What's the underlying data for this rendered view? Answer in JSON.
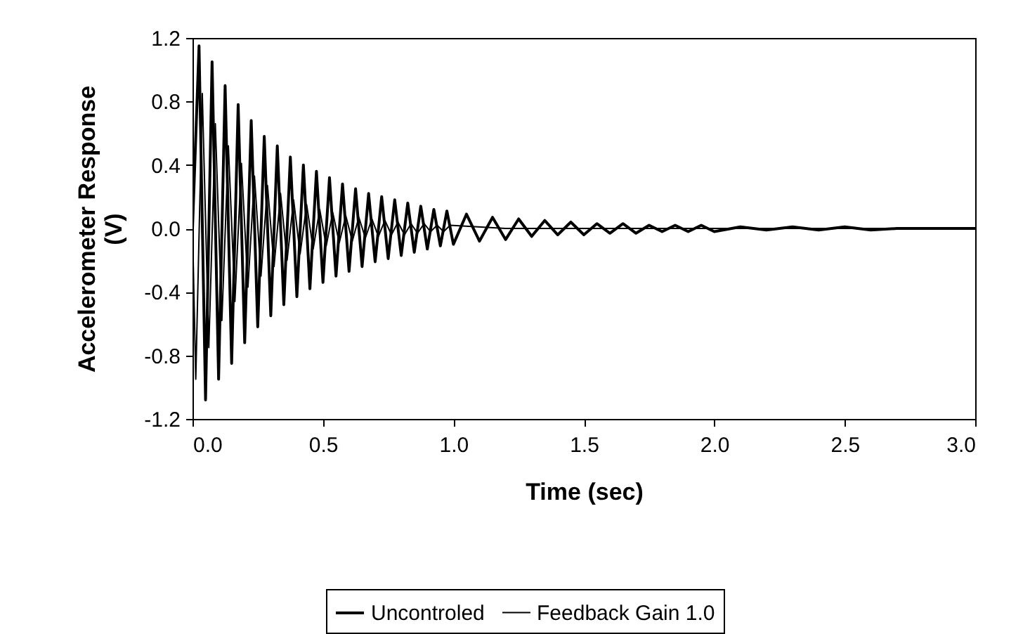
{
  "chart_data": {
    "type": "line",
    "xlabel": "Time (sec)",
    "ylabel": "Accelerometer Response (V)",
    "xlim": [
      0,
      3
    ],
    "xticks": [
      {
        "value": 0,
        "label": "0.0"
      },
      {
        "value": 0.5,
        "label": "0.5"
      },
      {
        "value": 1,
        "label": "1.0"
      },
      {
        "value": 1.5,
        "label": "1.5"
      },
      {
        "value": 2,
        "label": "2.0"
      },
      {
        "value": 2.5,
        "label": "2.5"
      },
      {
        "value": 3,
        "label": "3.0"
      }
    ],
    "ylim": [
      -1.2,
      1.2
    ],
    "yticks": [
      {
        "value": -1.2,
        "label": "-1.2"
      },
      {
        "value": -0.8,
        "label": "-0.8"
      },
      {
        "value": -0.4,
        "label": "-0.4"
      },
      {
        "value": 0,
        "label": "0.0"
      },
      {
        "value": 0.4,
        "label": "0.4"
      },
      {
        "value": 0.8,
        "label": "0.8"
      },
      {
        "value": 1.2,
        "label": "1.2"
      }
    ],
    "grid": false,
    "legend": "bottom",
    "marker": "none",
    "line_style": "solid",
    "series": [
      {
        "name": "Uncontroled",
        "color": "#000000",
        "x": [
          0,
          0.025,
          0.05,
          0.075,
          0.1,
          0.125,
          0.15,
          0.175,
          0.2,
          0.225,
          0.25,
          0.275,
          0.3,
          0.325,
          0.35,
          0.375,
          0.4,
          0.425,
          0.45,
          0.475,
          0.5,
          0.525,
          0.55,
          0.575,
          0.6,
          0.625,
          0.65,
          0.675,
          0.7,
          0.725,
          0.75,
          0.775,
          0.8,
          0.825,
          0.85,
          0.875,
          0.9,
          0.925,
          0.95,
          0.975,
          1.0,
          1.05,
          1.1,
          1.15,
          1.2,
          1.25,
          1.3,
          1.35,
          1.4,
          1.45,
          1.5,
          1.55,
          1.6,
          1.65,
          1.7,
          1.75,
          1.8,
          1.85,
          1.9,
          1.95,
          2.0,
          2.1,
          2.2,
          2.3,
          2.4,
          2.5,
          2.6,
          2.7,
          3.0
        ],
        "values": [
          0,
          1.15,
          -1.08,
          1.05,
          -0.95,
          0.9,
          -0.85,
          0.78,
          -0.72,
          0.68,
          -0.62,
          0.58,
          -0.55,
          0.52,
          -0.48,
          0.45,
          -0.43,
          0.4,
          -0.38,
          0.36,
          -0.34,
          0.32,
          -0.3,
          0.28,
          -0.27,
          0.25,
          -0.24,
          0.22,
          -0.21,
          0.2,
          -0.19,
          0.18,
          -0.17,
          0.16,
          -0.15,
          0.14,
          -0.13,
          0.12,
          -0.11,
          0.11,
          -0.1,
          0.09,
          -0.08,
          0.07,
          -0.07,
          0.06,
          -0.05,
          0.05,
          -0.04,
          0.04,
          -0.04,
          0.03,
          -0.03,
          0.03,
          -0.03,
          0.02,
          -0.02,
          0.02,
          -0.02,
          0.02,
          -0.02,
          0.01,
          -0.01,
          0.01,
          -0.01,
          0.01,
          -0.01,
          0,
          0
        ]
      },
      {
        "name": "Feedback Gain 1.0",
        "color": "#000000",
        "x": [
          0,
          0.0125,
          0.0375,
          0.0625,
          0.0875,
          0.1125,
          0.1375,
          0.1625,
          0.1875,
          0.2125,
          0.2375,
          0.2625,
          0.2875,
          0.3125,
          0.3375,
          0.3625,
          0.3875,
          0.4125,
          0.4375,
          0.4625,
          0.4875,
          0.5125,
          0.5375,
          0.5625,
          0.5875,
          0.6125,
          0.6375,
          0.6625,
          0.6875,
          0.7125,
          0.7375,
          0.7625,
          0.7875,
          0.8125,
          0.8375,
          0.8625,
          0.8875,
          0.9125,
          0.9375,
          0.9625,
          0.9875,
          1.2,
          3.0
        ],
        "values": [
          0,
          -0.95,
          0.85,
          -0.75,
          0.66,
          -0.58,
          0.52,
          -0.46,
          0.41,
          -0.37,
          0.33,
          -0.3,
          0.27,
          -0.24,
          0.22,
          -0.2,
          0.18,
          -0.16,
          0.15,
          -0.13,
          0.12,
          -0.11,
          0.1,
          -0.09,
          0.08,
          -0.08,
          0.07,
          -0.06,
          0.06,
          -0.05,
          0.05,
          -0.04,
          0.04,
          -0.04,
          0.03,
          -0.03,
          0.03,
          -0.02,
          0.02,
          -0.02,
          0.02,
          0,
          0
        ]
      }
    ]
  }
}
